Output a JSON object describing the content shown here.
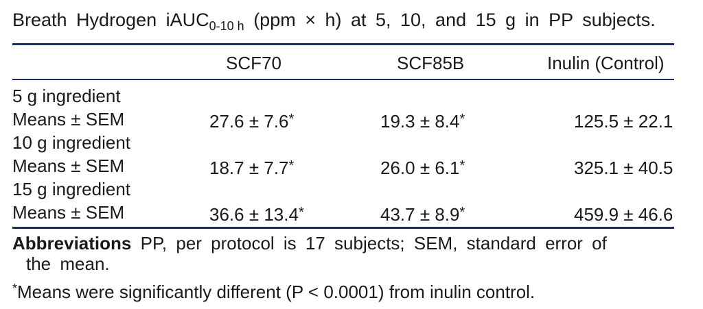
{
  "caption": {
    "main": "Breath Hydrogen iAUC",
    "subscript": "0-10 h",
    "rest": " (ppm × h) at 5, 10, and 15 g in PP subjects."
  },
  "table": {
    "columns": [
      "SCF70",
      "SCF85B",
      "Inulin (Control)"
    ],
    "groups": [
      {
        "label": "5 g ingredient",
        "stat_label": "Means ± SEM",
        "values": [
          {
            "text": "27.6 ± 7.6",
            "mark": "*"
          },
          {
            "text": "19.3 ± 8.4",
            "mark": "*"
          },
          {
            "text": "125.5 ± 22.1",
            "mark": ""
          }
        ]
      },
      {
        "label": "10 g ingredient",
        "stat_label": "Means ± SEM",
        "values": [
          {
            "text": "18.7 ± 7.7",
            "mark": "*"
          },
          {
            "text": "26.0 ± 6.1",
            "mark": "*"
          },
          {
            "text": "325.1 ± 40.5",
            "mark": ""
          }
        ]
      },
      {
        "label": "15 g ingredient",
        "stat_label": "Means ± SEM",
        "values": [
          {
            "text": "36.6 ± 13.4",
            "mark": "*"
          },
          {
            "text": "43.7 ± 8.9",
            "mark": "*"
          },
          {
            "text": "459.9 ± 46.6",
            "mark": ""
          }
        ]
      }
    ]
  },
  "footnotes": {
    "abbrev_lead": "Abbreviations",
    "abbrev_text": " PP, per protocol is 17 subjects; SEM, standard error of",
    "abbrev_cont": "the mean.",
    "sig_mark": "*",
    "sig_text": "Means were significantly different (P < 0.0001) from inulin control."
  },
  "colors": {
    "rule": "#1f2a6b",
    "text": "#1a1a1a"
  }
}
